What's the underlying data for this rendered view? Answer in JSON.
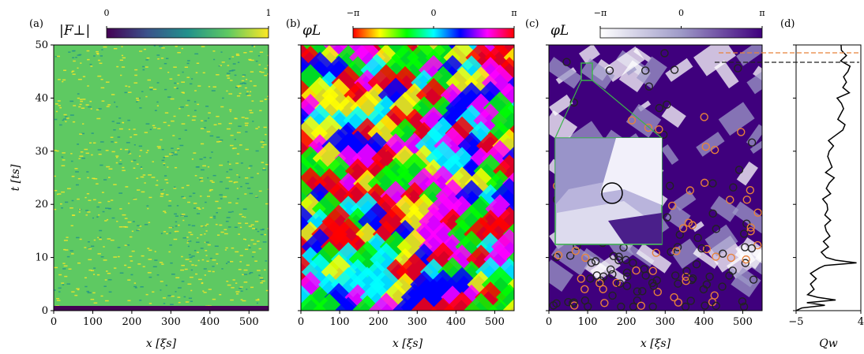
{
  "chart_data": [
    {
      "type": "heatmap",
      "label": "(a)",
      "xlabel": "x [ξs]",
      "ylabel": "t [ts]",
      "xlim": [
        0,
        550
      ],
      "xticks": [
        0,
        100,
        200,
        300,
        400,
        500
      ],
      "ylim": [
        0,
        50
      ],
      "yticks": [
        0,
        10,
        20,
        30,
        40,
        50
      ],
      "colorbar": {
        "label": "|F⊥|",
        "lim": [
          0,
          1
        ],
        "ticks": [
          0,
          1
        ],
        "colors": [
          "#440154",
          "#3b528b",
          "#21918c",
          "#5ec962",
          "#fde725"
        ]
      }
    },
    {
      "type": "heatmap",
      "label": "(b)",
      "xlabel": "x [ξs]",
      "xlim": [
        0,
        550
      ],
      "xticks": [
        0,
        100,
        200,
        300,
        400,
        500
      ],
      "ylim": [
        0,
        50
      ],
      "yticks": [
        0,
        10,
        20,
        30,
        40,
        50
      ],
      "colorbar": {
        "label": "φL",
        "lim": [
          -3.14159,
          3.14159
        ],
        "ticks": [
          {
            "value": -3.14159,
            "label": "−π"
          },
          0,
          {
            "value": 3.14159,
            "label": "π"
          }
        ],
        "colors": [
          "#ff0000",
          "#ffff00",
          "#00ff00",
          "#00ffff",
          "#0000ff",
          "#ff00ff",
          "#ff0000"
        ]
      }
    },
    {
      "type": "heatmap",
      "label": "(c)",
      "xlabel": "x [ξs]",
      "xlim": [
        0,
        550
      ],
      "xticks": [
        0,
        100,
        200,
        300,
        400,
        500
      ],
      "ylim": [
        0,
        50
      ],
      "yticks": [
        0,
        10,
        20,
        30,
        40,
        50
      ],
      "colorbar": {
        "label": "φL",
        "lim": [
          -3.14159,
          3.14159
        ],
        "ticks": [
          {
            "value": -3.14159,
            "label": "−π"
          },
          0,
          {
            "value": 3.14159,
            "label": "π"
          }
        ],
        "colors": [
          "#ffffff",
          "#9e9ac8",
          "#3f007d"
        ]
      }
    },
    {
      "type": "line",
      "label": "(d)",
      "xlabel": "Qw",
      "color": "#000000",
      "xlim": [
        -5,
        4
      ],
      "xticks": [
        {
          "value": -5,
          "label": "−5"
        },
        4
      ],
      "ylim": [
        0,
        50
      ],
      "yticks": [
        0,
        10,
        20,
        30,
        40,
        50
      ],
      "y": [
        0,
        0.5,
        1,
        1.5,
        2,
        2.5,
        3,
        4,
        5,
        6,
        7,
        8,
        8.5,
        9,
        9.5,
        10,
        11,
        12,
        13,
        14,
        15,
        16,
        17,
        18,
        19,
        20,
        21,
        22,
        23,
        24,
        25,
        26,
        27,
        28,
        29,
        30,
        31,
        32,
        33,
        34,
        35,
        36,
        37,
        38,
        39,
        40,
        41,
        42,
        43,
        44,
        45,
        46,
        47,
        48,
        49,
        50
      ],
      "values": [
        -5,
        -4.2,
        -1,
        -3.5,
        0.5,
        -2,
        -3.4,
        -2.5,
        -3,
        -2.2,
        -3,
        -1.8,
        -1,
        3.4,
        0.5,
        -0.8,
        -1.5,
        -0.5,
        -1.2,
        -0.3,
        -0.8,
        -1,
        -0.2,
        -1,
        -0.6,
        -0.7,
        -1.3,
        -0.2,
        -0.8,
        -0.4,
        0.3,
        -0.9,
        0,
        -0.3,
        -0.6,
        -0.4,
        0.2,
        -0.5,
        0.5,
        1.5,
        1.8,
        0.8,
        1.2,
        1.6,
        1.3,
        0.7,
        2.4,
        1.5,
        2,
        1.6,
        2.2,
        2.5,
        1.2,
        2,
        1.3,
        1.25
      ]
    }
  ]
}
